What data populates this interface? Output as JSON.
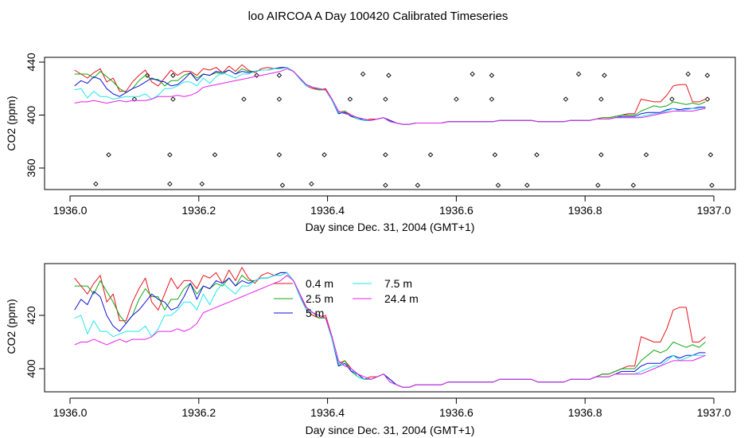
{
  "title": "loo AIRCOA A  Day 100420  Calibrated Timeseries",
  "colors": {
    "s04": "#e8141c",
    "s25": "#10a810",
    "s5": "#1010d8",
    "s75": "#20e8e8",
    "s244": "#e820e8",
    "flag": "#000000",
    "frame": "#000000"
  },
  "chart_data": [
    {
      "type": "line",
      "title": "loo AIRCOA A  Day 100420  Calibrated Timeseries",
      "xlabel": "Day since Dec. 31, 2004 (GMT+1)",
      "ylabel": "CO2 (ppm)",
      "xlim": [
        1936.0,
        1937.0
      ],
      "ylim": [
        350,
        440
      ],
      "xticks": [
        "1936.0",
        "1936.2",
        "1936.4",
        "1936.6",
        "1936.8",
        "1937.0"
      ],
      "yticks": [
        "360",
        "400",
        "440"
      ],
      "grid": false,
      "flag_markers": [
        {
          "x": 1936.04,
          "y": 348
        },
        {
          "x": 1936.06,
          "y": 370
        },
        {
          "x": 1936.1,
          "y": 412
        },
        {
          "x": 1936.12,
          "y": 430
        },
        {
          "x": 1936.155,
          "y": 348
        },
        {
          "x": 1936.155,
          "y": 370
        },
        {
          "x": 1936.16,
          "y": 412
        },
        {
          "x": 1936.16,
          "y": 430
        },
        {
          "x": 1936.205,
          "y": 348
        },
        {
          "x": 1936.225,
          "y": 370
        },
        {
          "x": 1936.27,
          "y": 412
        },
        {
          "x": 1936.29,
          "y": 430
        },
        {
          "x": 1936.325,
          "y": 370
        },
        {
          "x": 1936.325,
          "y": 412
        },
        {
          "x": 1936.325,
          "y": 430
        },
        {
          "x": 1936.33,
          "y": 347
        },
        {
          "x": 1936.375,
          "y": 348
        },
        {
          "x": 1936.395,
          "y": 370
        },
        {
          "x": 1936.435,
          "y": 412
        },
        {
          "x": 1936.455,
          "y": 431
        },
        {
          "x": 1936.49,
          "y": 347
        },
        {
          "x": 1936.49,
          "y": 370
        },
        {
          "x": 1936.49,
          "y": 412
        },
        {
          "x": 1936.495,
          "y": 430
        },
        {
          "x": 1936.54,
          "y": 347
        },
        {
          "x": 1936.56,
          "y": 370
        },
        {
          "x": 1936.6,
          "y": 412
        },
        {
          "x": 1936.625,
          "y": 431
        },
        {
          "x": 1936.655,
          "y": 412
        },
        {
          "x": 1936.655,
          "y": 430
        },
        {
          "x": 1936.66,
          "y": 370
        },
        {
          "x": 1936.665,
          "y": 347
        },
        {
          "x": 1936.71,
          "y": 347
        },
        {
          "x": 1936.725,
          "y": 370
        },
        {
          "x": 1936.77,
          "y": 412
        },
        {
          "x": 1936.79,
          "y": 431
        },
        {
          "x": 1936.82,
          "y": 347
        },
        {
          "x": 1936.825,
          "y": 370
        },
        {
          "x": 1936.825,
          "y": 412
        },
        {
          "x": 1936.83,
          "y": 430
        },
        {
          "x": 1936.875,
          "y": 347
        },
        {
          "x": 1936.895,
          "y": 370
        },
        {
          "x": 1936.935,
          "y": 412
        },
        {
          "x": 1936.96,
          "y": 431
        },
        {
          "x": 1936.99,
          "y": 412
        },
        {
          "x": 1936.99,
          "y": 430
        },
        {
          "x": 1936.995,
          "y": 370
        },
        {
          "x": 1936.997,
          "y": 347
        }
      ]
    },
    {
      "type": "line",
      "xlabel": "Day since Dec. 31, 2004 (GMT+1)",
      "ylabel": "CO2 (ppm)",
      "xlim": [
        1936.0,
        1937.0
      ],
      "ylim": [
        392,
        441
      ],
      "xticks": [
        "1936.0",
        "1936.2",
        "1936.4",
        "1936.6",
        "1936.8",
        "1937.0"
      ],
      "yticks": [
        "400",
        "420"
      ],
      "grid": false,
      "legend": {
        "placement": "top-center",
        "entries": [
          {
            "label": "0.4 m",
            "color": "#e8141c"
          },
          {
            "label": "2.5 m",
            "color": "#10a810"
          },
          {
            "label": "5 m",
            "color": "#1010d8"
          },
          {
            "label": "7.5 m",
            "color": "#20e8e8"
          },
          {
            "label": "24.4 m",
            "color": "#e820e8"
          }
        ]
      },
      "x": [
        1936.007,
        1936.017,
        1936.027,
        1936.037,
        1936.047,
        1936.057,
        1936.067,
        1936.077,
        1936.087,
        1936.097,
        1936.107,
        1936.117,
        1936.127,
        1936.137,
        1936.147,
        1936.157,
        1936.167,
        1936.177,
        1936.187,
        1936.197,
        1936.207,
        1936.217,
        1936.227,
        1936.237,
        1936.247,
        1936.257,
        1936.267,
        1936.277,
        1936.287,
        1936.297,
        1936.307,
        1936.317,
        1936.327,
        1936.337,
        1936.347,
        1936.357,
        1936.367,
        1936.377,
        1936.387,
        1936.397,
        1936.407,
        1936.417,
        1936.427,
        1936.437,
        1936.447,
        1936.457,
        1936.467,
        1936.477,
        1936.487,
        1936.497,
        1936.507,
        1936.517,
        1936.527,
        1936.537,
        1936.547,
        1936.557,
        1936.567,
        1936.577,
        1936.587,
        1936.597,
        1936.607,
        1936.617,
        1936.627,
        1936.637,
        1936.647,
        1936.657,
        1936.667,
        1936.677,
        1936.687,
        1936.697,
        1936.707,
        1936.717,
        1936.727,
        1936.737,
        1936.747,
        1936.757,
        1936.767,
        1936.777,
        1936.787,
        1936.797,
        1936.807,
        1936.817,
        1936.827,
        1936.837,
        1936.847,
        1936.857,
        1936.867,
        1936.877,
        1936.887,
        1936.897,
        1936.907,
        1936.917,
        1936.927,
        1936.937,
        1936.947,
        1936.957,
        1936.967,
        1936.977,
        1936.987
      ],
      "series": [
        {
          "name": "0.4 m",
          "color": "#e8141c",
          "values": [
            434,
            431,
            428,
            432,
            435,
            425,
            428,
            418,
            418,
            425,
            430,
            434,
            425,
            422,
            428,
            434,
            430,
            433,
            433,
            430,
            435,
            434,
            436,
            432,
            437,
            433,
            438,
            434,
            432,
            435,
            436,
            435,
            436,
            436,
            433,
            428,
            422,
            420,
            419,
            420,
            412,
            402,
            403,
            400,
            398,
            396,
            397,
            397,
            398,
            396,
            394,
            393,
            393,
            394,
            394,
            394,
            394,
            394,
            395,
            395,
            395,
            395,
            395,
            395,
            395,
            395,
            396,
            396,
            396,
            396,
            396,
            396,
            395,
            395,
            395,
            395,
            395,
            396,
            396,
            396,
            396,
            397,
            398,
            398,
            399,
            400,
            401,
            401,
            412,
            411,
            410,
            410,
            415,
            422,
            423,
            423,
            410,
            410,
            412
          ]
        },
        {
          "name": "2.5 m",
          "color": "#10a810",
          "values": [
            431,
            431,
            431,
            428,
            433,
            429,
            425,
            420,
            417,
            420,
            426,
            430,
            427,
            427,
            422,
            426,
            426,
            430,
            432,
            428,
            431,
            430,
            432,
            431,
            434,
            431,
            435,
            433,
            433,
            434,
            434,
            435,
            435,
            436,
            433,
            428,
            423,
            421,
            419,
            419,
            411,
            401,
            403,
            399,
            397,
            396,
            396,
            397,
            398,
            396,
            394,
            393,
            393,
            394,
            394,
            394,
            394,
            394,
            395,
            395,
            395,
            395,
            395,
            395,
            395,
            395,
            396,
            396,
            396,
            396,
            396,
            396,
            395,
            395,
            395,
            395,
            395,
            396,
            396,
            396,
            396,
            397,
            398,
            398,
            399,
            400,
            400,
            400,
            403,
            405,
            407,
            406,
            407,
            410,
            409,
            408,
            409,
            408,
            410
          ]
        },
        {
          "name": "5 m",
          "color": "#1010d8",
          "values": [
            422,
            426,
            424,
            429,
            427,
            420,
            416,
            414,
            417,
            420,
            422,
            425,
            428,
            426,
            425,
            422,
            423,
            427,
            432,
            426,
            431,
            430,
            433,
            432,
            434,
            431,
            433,
            432,
            433,
            434,
            434,
            435,
            436,
            436,
            433,
            428,
            423,
            421,
            420,
            419,
            411,
            401,
            402,
            399,
            398,
            396,
            396,
            397,
            398,
            396,
            394,
            393,
            393,
            394,
            394,
            394,
            394,
            394,
            395,
            395,
            395,
            395,
            395,
            395,
            395,
            395,
            396,
            396,
            396,
            396,
            396,
            396,
            395,
            395,
            395,
            395,
            395,
            396,
            396,
            396,
            396,
            397,
            397,
            397,
            398,
            399,
            399,
            399,
            401,
            402,
            402,
            402,
            404,
            405,
            404,
            405,
            405,
            406,
            406
          ]
        },
        {
          "name": "7.5 m",
          "color": "#20e8e8",
          "values": [
            419,
            420,
            413,
            418,
            414,
            414,
            412,
            413,
            414,
            414,
            414,
            416,
            412,
            415,
            420,
            420,
            422,
            425,
            425,
            422,
            428,
            424,
            429,
            432,
            430,
            428,
            431,
            431,
            433,
            434,
            434,
            435,
            435,
            436,
            433,
            427,
            422,
            421,
            420,
            419,
            411,
            402,
            401,
            400,
            397,
            396,
            396,
            397,
            398,
            395,
            394,
            393,
            393,
            394,
            394,
            394,
            394,
            394,
            395,
            395,
            395,
            395,
            395,
            395,
            395,
            395,
            396,
            396,
            396,
            396,
            396,
            396,
            395,
            395,
            395,
            395,
            395,
            396,
            396,
            396,
            396,
            397,
            397,
            397,
            398,
            398,
            398,
            398,
            399,
            400,
            401,
            401,
            403,
            405,
            403,
            404,
            405,
            405,
            405
          ]
        },
        {
          "name": "24.4 m",
          "color": "#e820e8",
          "values": [
            409,
            410,
            410,
            411,
            410,
            409,
            410,
            411,
            410,
            411,
            411,
            411,
            412,
            414,
            414,
            414,
            415,
            414,
            415,
            417,
            421,
            422,
            423,
            424,
            425,
            426,
            427,
            428,
            429,
            430,
            431,
            432,
            433,
            435,
            433,
            428,
            423,
            421,
            420,
            419,
            412,
            403,
            401,
            400,
            398,
            397,
            396,
            397,
            398,
            395,
            394,
            393,
            393,
            394,
            394,
            394,
            394,
            394,
            395,
            395,
            395,
            395,
            395,
            395,
            395,
            395,
            396,
            396,
            396,
            396,
            396,
            396,
            395,
            395,
            395,
            395,
            395,
            396,
            396,
            396,
            396,
            397,
            397,
            397,
            398,
            398,
            398,
            398,
            398,
            399,
            400,
            401,
            402,
            403,
            403,
            403,
            403,
            404,
            405
          ]
        }
      ]
    }
  ]
}
